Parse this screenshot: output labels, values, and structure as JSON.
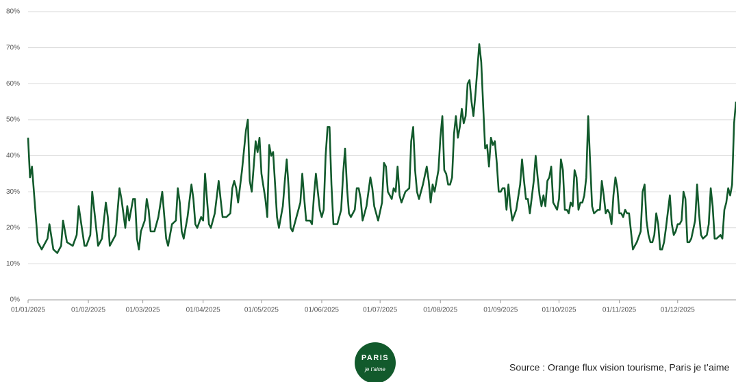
{
  "chart_data": {
    "type": "line",
    "source": "Source : Orange flux vision tourisme, Paris je t’aime",
    "logo": {
      "title": "PARIS",
      "subtitle": "je t’aime"
    },
    "color": "#125a2c",
    "grid": true,
    "ylim": [
      0,
      80
    ],
    "yticks": [
      {
        "value": 0,
        "label": "0%"
      },
      {
        "value": 10,
        "label": "10%"
      },
      {
        "value": 20,
        "label": "20%"
      },
      {
        "value": 30,
        "label": "30%"
      },
      {
        "value": 40,
        "label": "40%"
      },
      {
        "value": 50,
        "label": "50%"
      },
      {
        "value": 60,
        "label": "60%"
      },
      {
        "value": 70,
        "label": "70%"
      },
      {
        "value": 80,
        "label": "80%"
      }
    ],
    "xlim": [
      "01/01/2025",
      "31/12/2025"
    ],
    "xticks": [
      "01/01/2025",
      "01/02/2025",
      "01/03/2025",
      "01/04/2025",
      "01/05/2025",
      "01/06/2025",
      "01/07/2025",
      "01/08/2025",
      "01/09/2025",
      "01/10/2025",
      "01/11/2025",
      "01/12/2025"
    ],
    "x": [
      "01/01/2025",
      "02/01/2025",
      "03/01/2025",
      "06/01/2025",
      "08/01/2025",
      "11/01/2025",
      "12/01/2025",
      "14/01/2025",
      "16/01/2025",
      "18/01/2025",
      "19/01/2025",
      "21/01/2025",
      "24/01/2025",
      "26/01/2025",
      "27/01/2025",
      "30/01/2025",
      "31/01/2025",
      "02/02/2025",
      "03/02/2025",
      "04/02/2025",
      "06/02/2025",
      "08/02/2025",
      "10/02/2025",
      "11/02/2025",
      "12/02/2025",
      "15/02/2025",
      "17/02/2025",
      "18/02/2025",
      "20/02/2025",
      "21/02/2025",
      "22/02/2025",
      "24/02/2025",
      "25/02/2025",
      "26/02/2025",
      "27/02/2025",
      "28/02/2025",
      "02/03/2025",
      "03/03/2025",
      "04/03/2025",
      "05/03/2025",
      "07/03/2025",
      "09/03/2025",
      "11/03/2025",
      "13/03/2025",
      "14/03/2025",
      "16/03/2025",
      "18/03/2025",
      "19/03/2025",
      "20/03/2025",
      "21/03/2025",
      "22/03/2025",
      "24/03/2025",
      "26/03/2025",
      "27/03/2025",
      "28/03/2025",
      "29/03/2025",
      "31/03/2025",
      "01/04/2025",
      "02/04/2025",
      "03/04/2025",
      "04/04/2025",
      "05/04/2025",
      "07/04/2025",
      "09/04/2025",
      "10/04/2025",
      "11/04/2025",
      "13/04/2025",
      "15/04/2025",
      "16/04/2025",
      "17/04/2025",
      "18/04/2025",
      "19/04/2025",
      "21/04/2025",
      "23/04/2025",
      "24/04/2025",
      "25/04/2025",
      "26/04/2025",
      "28/04/2025",
      "29/04/2025",
      "30/04/2025",
      "01/05/2025",
      "03/05/2025",
      "04/05/2025",
      "05/05/2025",
      "06/05/2025",
      "07/05/2025",
      "08/05/2025",
      "09/05/2025",
      "10/05/2025",
      "12/05/2025",
      "13/05/2025",
      "14/05/2025",
      "15/05/2025",
      "16/05/2025",
      "17/05/2025",
      "19/05/2025",
      "21/05/2025",
      "22/05/2025",
      "23/05/2025",
      "24/05/2025",
      "26/05/2025",
      "27/05/2025",
      "28/05/2025",
      "29/05/2025",
      "31/05/2025",
      "01/06/2025",
      "02/06/2025",
      "03/06/2025",
      "04/06/2025",
      "05/06/2025",
      "06/06/2025",
      "07/06/2025",
      "09/06/2025",
      "11/06/2025",
      "12/06/2025",
      "13/06/2025",
      "14/06/2025",
      "15/06/2025",
      "16/06/2025",
      "18/06/2025",
      "19/06/2025",
      "20/06/2025",
      "21/06/2025",
      "22/06/2025",
      "24/06/2025",
      "26/06/2025",
      "27/06/2025",
      "28/06/2025",
      "30/06/2025",
      "02/07/2025",
      "03/07/2025",
      "04/07/2025",
      "05/07/2025",
      "07/07/2025",
      "08/07/2025",
      "09/07/2025",
      "10/07/2025",
      "11/07/2025",
      "12/07/2025",
      "14/07/2025",
      "16/07/2025",
      "17/07/2025",
      "18/07/2025",
      "19/07/2025",
      "20/07/2025",
      "21/07/2025",
      "23/07/2025",
      "25/07/2025",
      "26/07/2025",
      "27/07/2025",
      "28/07/2025",
      "29/07/2025",
      "31/07/2025",
      "01/08/2025",
      "02/08/2025",
      "03/08/2025",
      "04/08/2025",
      "05/08/2025",
      "06/08/2025",
      "07/08/2025",
      "08/08/2025",
      "09/08/2025",
      "10/08/2025",
      "11/08/2025",
      "12/08/2025",
      "13/08/2025",
      "14/08/2025",
      "15/08/2025",
      "16/08/2025",
      "17/08/2025",
      "18/08/2025",
      "19/08/2025",
      "20/08/2025",
      "21/08/2025",
      "22/08/2025",
      "23/08/2025",
      "24/08/2025",
      "25/08/2025",
      "26/08/2025",
      "27/08/2025",
      "28/08/2025",
      "29/08/2025",
      "30/08/2025",
      "31/08/2025",
      "01/09/2025",
      "02/09/2025",
      "03/09/2025",
      "04/09/2025",
      "05/09/2025",
      "06/09/2025",
      "07/09/2025",
      "09/09/2025",
      "11/09/2025",
      "12/09/2025",
      "13/09/2025",
      "14/09/2025",
      "15/09/2025",
      "16/09/2025",
      "18/09/2025",
      "19/09/2025",
      "20/09/2025",
      "21/09/2025",
      "22/09/2025",
      "23/09/2025",
      "24/09/2025",
      "25/09/2025",
      "26/09/2025",
      "27/09/2025",
      "28/09/2025",
      "30/09/2025",
      "01/10/2025",
      "02/10/2025",
      "03/10/2025",
      "04/10/2025",
      "05/10/2025",
      "06/10/2025",
      "07/10/2025",
      "08/10/2025",
      "09/10/2025",
      "10/10/2025",
      "11/10/2025",
      "12/10/2025",
      "13/10/2025",
      "14/10/2025",
      "15/10/2025",
      "16/10/2025",
      "17/10/2025",
      "18/10/2025",
      "19/10/2025",
      "21/10/2025",
      "22/10/2025",
      "23/10/2025",
      "24/10/2025",
      "25/10/2025",
      "26/10/2025",
      "27/10/2025",
      "28/10/2025",
      "29/10/2025",
      "30/10/2025",
      "31/10/2025",
      "01/11/2025",
      "02/11/2025",
      "03/11/2025",
      "04/11/2025",
      "05/11/2025",
      "06/11/2025",
      "07/11/2025",
      "08/11/2025",
      "10/11/2025",
      "12/11/2025",
      "13/11/2025",
      "14/11/2025",
      "15/11/2025",
      "16/11/2025",
      "17/11/2025",
      "18/11/2025",
      "19/11/2025",
      "20/11/2025",
      "21/11/2025",
      "22/11/2025",
      "23/11/2025",
      "24/11/2025",
      "25/11/2025",
      "27/11/2025",
      "28/11/2025",
      "29/11/2025",
      "30/11/2025",
      "01/12/2025",
      "02/12/2025",
      "03/12/2025",
      "04/12/2025",
      "05/12/2025",
      "06/12/2025",
      "07/12/2025",
      "08/12/2025",
      "10/12/2025",
      "11/12/2025",
      "12/12/2025",
      "13/12/2025",
      "14/12/2025",
      "16/12/2025",
      "17/12/2025",
      "18/12/2025",
      "19/12/2025",
      "20/12/2025",
      "21/12/2025",
      "23/12/2025",
      "24/12/2025",
      "25/12/2025",
      "26/12/2025",
      "27/12/2025",
      "28/12/2025",
      "29/12/2025",
      "30/12/2025",
      "31/12/2025"
    ],
    "values": [
      45,
      34,
      37,
      16,
      14,
      17,
      21,
      14,
      13,
      15,
      22,
      16,
      15,
      18,
      26,
      15,
      15,
      18,
      30,
      25,
      15,
      17,
      27,
      23,
      15,
      18,
      31,
      28,
      20,
      26,
      22,
      28,
      28,
      17,
      14,
      19,
      22,
      28,
      25,
      19,
      19,
      23,
      30,
      17,
      15,
      21,
      22,
      31,
      27,
      19,
      17,
      23,
      32,
      28,
      21,
      20,
      23,
      22,
      35,
      28,
      21,
      20,
      24,
      33,
      28,
      23,
      23,
      24,
      31,
      33,
      31,
      27,
      36,
      47,
      50,
      33,
      30,
      44,
      41,
      45,
      35,
      28,
      23,
      43,
      40,
      41,
      32,
      23,
      20,
      26,
      33,
      39,
      31,
      20,
      19,
      23,
      27,
      35,
      28,
      22,
      22,
      21,
      29,
      35,
      25,
      23,
      25,
      40,
      48,
      48,
      32,
      21,
      21,
      25,
      35,
      42,
      31,
      24,
      23,
      25,
      31,
      31,
      28,
      22,
      26,
      34,
      31,
      26,
      22,
      27,
      38,
      37,
      30,
      28,
      31,
      30,
      37,
      29,
      27,
      30,
      31,
      44,
      48,
      36,
      30,
      28,
      32,
      37,
      33,
      27,
      32,
      30,
      36,
      45,
      51,
      36,
      35,
      32,
      32,
      34,
      46,
      51,
      45,
      48,
      53,
      49,
      51,
      60,
      61,
      55,
      51,
      57,
      64,
      71,
      66,
      54,
      42,
      43,
      37,
      45,
      43,
      44,
      38,
      30,
      30,
      31,
      31,
      25,
      32,
      26,
      22,
      25,
      32,
      39,
      33,
      28,
      28,
      24,
      33,
      40,
      34,
      29,
      26,
      29,
      26,
      33,
      34,
      37,
      27,
      25,
      28,
      39,
      36,
      25,
      25,
      24,
      27,
      26,
      36,
      34,
      25,
      27,
      27,
      29,
      34,
      51,
      38,
      26,
      24,
      25,
      25,
      33,
      29,
      24,
      25,
      24,
      21,
      29,
      34,
      31,
      24,
      24,
      23,
      25,
      24,
      24,
      19,
      14,
      16,
      19,
      30,
      32,
      22,
      18,
      16,
      16,
      18,
      24,
      21,
      14,
      14,
      16,
      20,
      29,
      21,
      18,
      19,
      21,
      21,
      22,
      30,
      28,
      16,
      16,
      17,
      22,
      32,
      24,
      18,
      17,
      18,
      21,
      31,
      26,
      17,
      17,
      18,
      17,
      25,
      27,
      31,
      29,
      32,
      49,
      55
    ]
  }
}
